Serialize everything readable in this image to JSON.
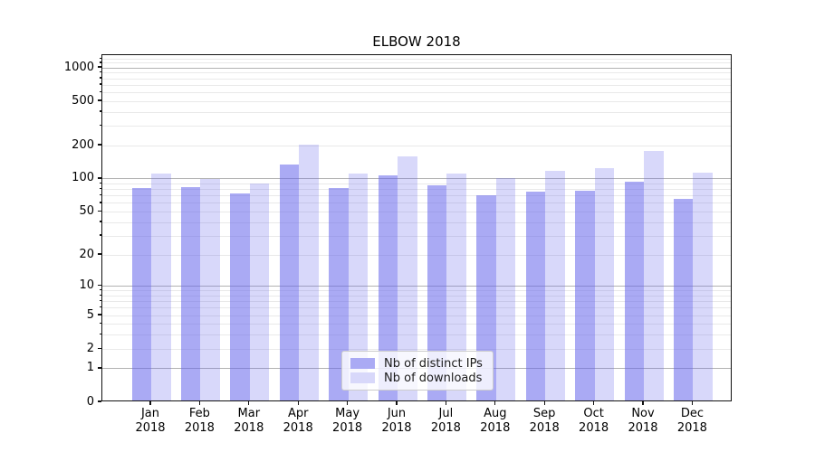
{
  "chart_data": {
    "type": "bar",
    "title": "ELBOW 2018",
    "categories": [
      "Jan 2018",
      "Feb 2018",
      "Mar 2018",
      "Apr 2018",
      "May 2018",
      "Jun 2018",
      "Jul 2018",
      "Aug 2018",
      "Sep 2018",
      "Oct 2018",
      "Nov 2018",
      "Dec 2018"
    ],
    "series": [
      {
        "name": "Nb of distinct IPs",
        "color": "rgba(100,100,235,0.55)",
        "color_on_white": "#aaaaf4",
        "values": [
          80,
          81,
          71,
          130,
          79,
          103,
          84,
          68,
          74,
          75,
          90,
          63
        ]
      },
      {
        "name": "Nb of downloads",
        "color": "rgba(100,100,235,0.25)",
        "color_on_white": "#d8d8fa",
        "values": [
          107,
          96,
          87,
          196,
          108,
          153,
          107,
          98,
          113,
          121,
          171,
          109
        ]
      }
    ],
    "xlabel": "",
    "ylabel": "",
    "yscale": "symlog (position proportional to ln(1+v))",
    "y_ticks": [
      0,
      1,
      2,
      5,
      10,
      20,
      50,
      100,
      200,
      500,
      1000
    ],
    "ylim": [
      0,
      1300
    ],
    "grid": {
      "major_lines_at": [
        1,
        10,
        100,
        1000
      ],
      "minor_lines": true,
      "orientation": "horizontal"
    },
    "legend_position": "lower center"
  },
  "colors": {
    "major_grid": "#b2b2b2",
    "minor_grid": "#e9e9e9",
    "spine": "#111111",
    "text": "#000000",
    "legend_border": "#cccccc",
    "legend_bg": "rgba(255,255,255,0.8)"
  }
}
